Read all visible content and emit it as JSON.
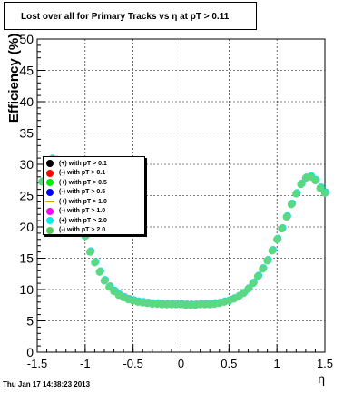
{
  "title": "Lost over all for Primary Tracks vs   η at pT > 0.11",
  "footer": "Thu Jan 17 14:38:23 2013",
  "chart_data": {
    "type": "scatter",
    "xlabel": "η",
    "ylabel": "Efficiency (%)",
    "xlim": [
      -1.5,
      1.5
    ],
    "ylim": [
      0,
      50
    ],
    "x_ticks": [
      "-1.5",
      "-1",
      "-0.5",
      "0",
      "0.5",
      "1",
      "1.5"
    ],
    "y_ticks": [
      "0",
      "5",
      "10",
      "15",
      "20",
      "25",
      "30",
      "35",
      "40",
      "45",
      "50"
    ],
    "grid": true,
    "legend_position": "middle-left",
    "legend": [
      {
        "label": "(+) with pT > 0.1",
        "color": "#000000",
        "marker": "circle"
      },
      {
        "label": "(-) with pT > 0.1",
        "color": "#ff0000",
        "marker": "circle"
      },
      {
        "label": "(+) with pT > 0.5",
        "color": "#00ee00",
        "marker": "circle"
      },
      {
        "label": "(-) with pT > 0.5",
        "color": "#0000ff",
        "marker": "circle"
      },
      {
        "label": "(+) with pT > 1.0",
        "color": "#ccaa00",
        "marker": "line"
      },
      {
        "label": "(-) with pT > 1.0",
        "color": "#ff00ff",
        "marker": "circle"
      },
      {
        "label": "(+) with pT > 2.0",
        "color": "#00eeee",
        "marker": "circle"
      },
      {
        "label": "(-) with pT > 2.0",
        "color": "#55cc55",
        "marker": "circle"
      }
    ],
    "series": [
      {
        "color_front": "#5bd882",
        "color_back": "#22e0e0",
        "x": [
          -1.45,
          -1.4,
          -1.35,
          -1.3,
          -1.25,
          -1.2,
          -1.15,
          -1.1,
          -1.05,
          -1.0,
          -0.95,
          -0.9,
          -0.85,
          -0.8,
          -0.75,
          -0.7,
          -0.65,
          -0.6,
          -0.55,
          -0.5,
          -0.45,
          -0.4,
          -0.35,
          -0.3,
          -0.25,
          -0.2,
          -0.15,
          -0.1,
          -0.05,
          0.0,
          0.05,
          0.1,
          0.15,
          0.2,
          0.25,
          0.3,
          0.35,
          0.4,
          0.45,
          0.5,
          0.55,
          0.6,
          0.65,
          0.7,
          0.75,
          0.8,
          0.85,
          0.9,
          0.95,
          1.0,
          1.05,
          1.1,
          1.15,
          1.2,
          1.25,
          1.3,
          1.35,
          1.4,
          1.45,
          1.5
        ],
        "y": [
          27.2,
          29.5,
          30.8,
          30.6,
          29.5,
          28.0,
          26.0,
          23.6,
          21.0,
          18.5,
          16.0,
          14.3,
          12.8,
          11.4,
          10.4,
          9.7,
          9.1,
          8.7,
          8.4,
          8.2,
          8.0,
          7.9,
          7.8,
          7.7,
          7.7,
          7.6,
          7.6,
          7.6,
          7.6,
          7.6,
          7.5,
          7.5,
          7.5,
          7.6,
          7.6,
          7.6,
          7.7,
          7.8,
          8.0,
          8.2,
          8.5,
          8.9,
          9.4,
          10.1,
          11.0,
          12.1,
          13.3,
          14.6,
          16.2,
          18.0,
          19.7,
          21.6,
          23.6,
          25.3,
          26.8,
          27.8,
          28.0,
          27.4,
          26.2,
          25.4
        ]
      }
    ]
  }
}
